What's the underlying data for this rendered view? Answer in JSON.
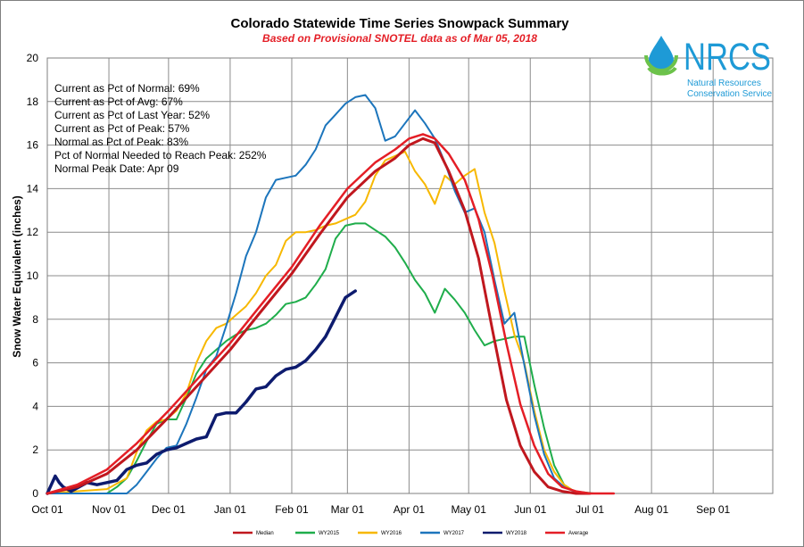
{
  "chart_data": {
    "type": "line",
    "title": "Colorado Statewide Time Series Snowpack Summary",
    "subtitle": "Based on Provisional SNOTEL data as of Mar 05, 2018",
    "xlabel": "",
    "ylabel": "Snow Water Equivalent (inches)",
    "ylim": [
      0,
      20
    ],
    "yticks": [
      "0",
      "2",
      "4",
      "6",
      "8",
      "10",
      "12",
      "14",
      "16",
      "18",
      "20"
    ],
    "x_unit": "days since Oct 01",
    "xlim": [
      0,
      365
    ],
    "xtick_days": [
      0,
      31,
      61,
      92,
      123,
      151,
      182,
      212,
      243,
      273,
      304,
      335
    ],
    "xticks": [
      "Oct 01",
      "Nov 01",
      "Dec 01",
      "Jan 01",
      "Feb 01",
      "Mar 01",
      "Apr 01",
      "May 01",
      "Jun 01",
      "Jul 01",
      "Aug 01",
      "Sep 01"
    ],
    "grid": true,
    "stats": [
      "Current  as Pct of Normal: 69%",
      "Current  as Pct of Avg: 67%",
      "Current  as Pct of Last Year: 52%",
      "Current  as Pct of Peak: 57%",
      "Normal  as Pct of Peak: 83%",
      "Pct of Normal Needed  to Reach Peak: 252%",
      "Normal Peak Date: Apr 09"
    ],
    "logo": {
      "name": "NRCS",
      "line1": "Natural Resources",
      "line2": "Conservation Service"
    },
    "series": [
      {
        "name": "WY2015",
        "color": "#1fad4b",
        "width": 2,
        "x": [
          0,
          30,
          35,
          40,
          45,
          50,
          55,
          60,
          65,
          70,
          75,
          80,
          85,
          90,
          95,
          100,
          105,
          110,
          115,
          120,
          125,
          130,
          135,
          140,
          145,
          150,
          155,
          160,
          165,
          170,
          175,
          180,
          185,
          190,
          195,
          200,
          205,
          210,
          215,
          220,
          225,
          230,
          235,
          240,
          245,
          250,
          255,
          260,
          265,
          275
        ],
        "y": [
          0,
          0,
          0.3,
          0.7,
          1.5,
          2.4,
          3.2,
          3.4,
          3.4,
          4.4,
          5.5,
          6.2,
          6.6,
          7.0,
          7.3,
          7.5,
          7.6,
          7.8,
          8.2,
          8.7,
          8.8,
          9.0,
          9.6,
          10.3,
          11.7,
          12.3,
          12.4,
          12.4,
          12.1,
          11.8,
          11.3,
          10.6,
          9.8,
          9.2,
          8.3,
          9.4,
          8.9,
          8.3,
          7.5,
          6.8,
          7.0,
          7.1,
          7.2,
          7.2,
          5.0,
          3.0,
          1.3,
          0.4,
          0.1,
          0
        ]
      },
      {
        "name": "WY2016",
        "color": "#f7b800",
        "width": 2,
        "x": [
          0,
          30,
          40,
          45,
          50,
          55,
          60,
          65,
          70,
          75,
          80,
          85,
          90,
          95,
          100,
          105,
          110,
          115,
          120,
          125,
          130,
          135,
          140,
          145,
          150,
          155,
          160,
          165,
          170,
          175,
          180,
          185,
          190,
          195,
          200,
          205,
          210,
          215,
          220,
          225,
          230,
          235,
          240,
          245,
          250,
          255,
          260,
          265,
          270
        ],
        "y": [
          0,
          0.2,
          0.7,
          1.9,
          2.9,
          3.3,
          3.4,
          3.8,
          4.6,
          6.0,
          7.0,
          7.6,
          7.8,
          8.2,
          8.6,
          9.2,
          10.0,
          10.5,
          11.6,
          12.0,
          12.0,
          12.1,
          12.3,
          12.4,
          12.6,
          12.8,
          13.4,
          14.6,
          15.3,
          15.5,
          15.7,
          14.8,
          14.2,
          13.3,
          14.6,
          14.2,
          14.6,
          14.9,
          12.9,
          11.5,
          9.3,
          7.3,
          6.0,
          3.8,
          2.0,
          1.0,
          0.4,
          0.1,
          0
        ]
      },
      {
        "name": "WY2017",
        "color": "#1c75bc",
        "width": 2,
        "x": [
          0,
          40,
          45,
          50,
          55,
          60,
          65,
          70,
          75,
          80,
          85,
          90,
          95,
          100,
          105,
          110,
          115,
          120,
          125,
          130,
          135,
          140,
          145,
          150,
          155,
          160,
          165,
          170,
          175,
          180,
          185,
          190,
          195,
          200,
          205,
          210,
          215,
          220,
          225,
          230,
          235,
          240,
          245,
          250,
          255,
          260,
          265,
          270,
          275
        ],
        "y": [
          0,
          0,
          0.4,
          1.0,
          1.6,
          2.1,
          2.2,
          3.2,
          4.4,
          5.7,
          6.3,
          7.7,
          9.2,
          10.9,
          12.0,
          13.6,
          14.4,
          14.5,
          14.6,
          15.1,
          15.8,
          16.9,
          17.4,
          17.9,
          18.2,
          18.3,
          17.7,
          16.2,
          16.4,
          17.0,
          17.6,
          17.0,
          16.3,
          15.2,
          13.9,
          12.9,
          13.1,
          12.0,
          9.8,
          7.8,
          8.3,
          5.9,
          3.6,
          1.8,
          0.7,
          0.3,
          0.1,
          0,
          0
        ]
      },
      {
        "name": "WY2018",
        "color": "#0d1b6e",
        "width": 3.5,
        "x": [
          0,
          2,
          4,
          6,
          8,
          12,
          16,
          20,
          25,
          30,
          35,
          40,
          45,
          50,
          55,
          60,
          65,
          70,
          75,
          80,
          85,
          90,
          95,
          100,
          105,
          110,
          115,
          120,
          125,
          130,
          135,
          140,
          145,
          150,
          155
        ],
        "y": [
          0,
          0.4,
          0.8,
          0.5,
          0.3,
          0.1,
          0.3,
          0.5,
          0.4,
          0.5,
          0.6,
          1.1,
          1.3,
          1.4,
          1.8,
          2.0,
          2.1,
          2.3,
          2.5,
          2.6,
          3.6,
          3.7,
          3.7,
          4.2,
          4.8,
          4.9,
          5.4,
          5.7,
          5.8,
          6.1,
          6.6,
          7.2,
          8.1,
          9.0,
          9.3
        ]
      },
      {
        "name": "Median",
        "color": "#c0171e",
        "width": 3,
        "x": [
          0,
          15,
          30,
          45,
          61,
          76,
          92,
          107,
          123,
          137,
          151,
          165,
          175,
          182,
          189,
          195,
          202,
          210,
          217,
          224,
          231,
          238,
          245,
          252,
          259,
          266,
          273
        ],
        "y": [
          0,
          0.3,
          0.9,
          2.0,
          3.5,
          5.0,
          6.6,
          8.3,
          10.1,
          11.9,
          13.6,
          14.8,
          15.4,
          16.0,
          16.3,
          16.1,
          14.8,
          13.0,
          10.8,
          7.5,
          4.3,
          2.2,
          1.0,
          0.3,
          0.1,
          0,
          0
        ]
      },
      {
        "name": "Average",
        "color": "#e41e26",
        "width": 2.5,
        "x": [
          0,
          15,
          30,
          45,
          61,
          76,
          92,
          107,
          123,
          137,
          151,
          165,
          175,
          182,
          189,
          195,
          202,
          210,
          217,
          224,
          231,
          238,
          245,
          252,
          259,
          266,
          273,
          285
        ],
        "y": [
          0,
          0.4,
          1.1,
          2.3,
          3.8,
          5.3,
          6.9,
          8.6,
          10.4,
          12.3,
          14.0,
          15.2,
          15.8,
          16.3,
          16.5,
          16.3,
          15.6,
          14.4,
          12.6,
          10.0,
          6.9,
          4.1,
          2.2,
          0.9,
          0.3,
          0.1,
          0,
          0
        ]
      }
    ],
    "legend_order": [
      "Median",
      "WY2015",
      "WY2016",
      "WY2017",
      "WY2018",
      "Average"
    ]
  }
}
